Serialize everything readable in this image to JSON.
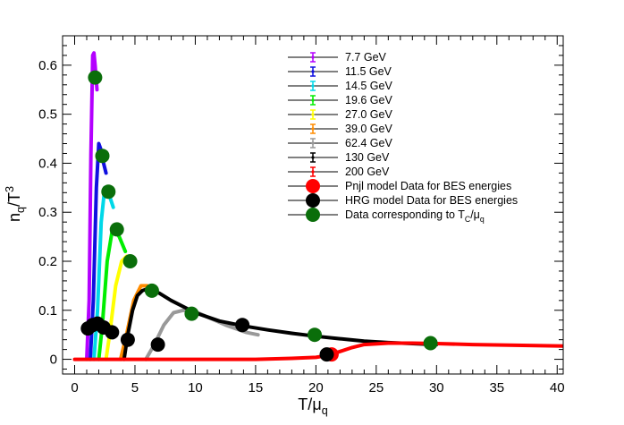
{
  "chart_data": {
    "type": "line",
    "title": "",
    "xlabel": "T/μq",
    "ylabel": "nq/T³",
    "xlim": [
      -1,
      40.5
    ],
    "ylim": [
      -0.03,
      0.66
    ],
    "x_ticks": [
      0,
      5,
      10,
      15,
      20,
      25,
      30,
      35,
      40
    ],
    "y_ticks": [
      0,
      0.1,
      0.2,
      0.3,
      0.4,
      0.5,
      0.6
    ],
    "x_tick_labels": [
      "0",
      "5",
      "10",
      "15",
      "20",
      "25",
      "30",
      "35",
      "40"
    ],
    "y_tick_labels": [
      "0",
      "0.1",
      "0.2",
      "0.3",
      "0.4",
      "0.5",
      "0.6"
    ],
    "series": [
      {
        "name": "7.7 GeV",
        "color": "#b400ff",
        "points": [
          [
            1.0,
            0.0
          ],
          [
            1.2,
            0.12
          ],
          [
            1.35,
            0.42
          ],
          [
            1.5,
            0.62
          ],
          [
            1.6,
            0.625
          ],
          [
            1.7,
            0.6
          ],
          [
            1.85,
            0.55
          ]
        ]
      },
      {
        "name": "11.5 GeV",
        "color": "#1010e0",
        "points": [
          [
            1.3,
            0.0
          ],
          [
            1.55,
            0.12
          ],
          [
            1.8,
            0.35
          ],
          [
            2.0,
            0.44
          ],
          [
            2.15,
            0.43
          ],
          [
            2.3,
            0.41
          ],
          [
            2.6,
            0.38
          ]
        ]
      },
      {
        "name": "14.5 GeV",
        "color": "#00d8e8",
        "points": [
          [
            1.6,
            0.0
          ],
          [
            1.9,
            0.1
          ],
          [
            2.2,
            0.28
          ],
          [
            2.5,
            0.35
          ],
          [
            2.8,
            0.34
          ],
          [
            3.2,
            0.31
          ]
        ]
      },
      {
        "name": "19.6 GeV",
        "color": "#00ee00",
        "points": [
          [
            2.0,
            0.0
          ],
          [
            2.3,
            0.07
          ],
          [
            2.7,
            0.2
          ],
          [
            3.1,
            0.26
          ],
          [
            3.4,
            0.26
          ],
          [
            3.7,
            0.25
          ],
          [
            4.2,
            0.22
          ]
        ]
      },
      {
        "name": "27.0 GeV",
        "color": "#ffff00",
        "points": [
          [
            2.6,
            0.0
          ],
          [
            2.9,
            0.05
          ],
          [
            3.4,
            0.15
          ],
          [
            3.9,
            0.2
          ],
          [
            4.3,
            0.21
          ],
          [
            4.8,
            0.2
          ]
        ]
      },
      {
        "name": "39.0 GeV",
        "color": "#ff8c00",
        "points": [
          [
            3.8,
            0.0
          ],
          [
            4.3,
            0.05
          ],
          [
            4.9,
            0.12
          ],
          [
            5.5,
            0.15
          ],
          [
            6.0,
            0.15
          ],
          [
            6.5,
            0.145
          ]
        ]
      },
      {
        "name": "62.4 GeV",
        "color": "#999999",
        "points": [
          [
            5.9,
            0.0
          ],
          [
            6.6,
            0.03
          ],
          [
            7.4,
            0.07
          ],
          [
            8.2,
            0.095
          ],
          [
            9.0,
            0.1
          ],
          [
            10.2,
            0.095
          ],
          [
            12.5,
            0.07
          ],
          [
            14.2,
            0.055
          ],
          [
            15.2,
            0.05
          ]
        ]
      },
      {
        "name": "130 GeV",
        "color": "#000000",
        "points": [
          [
            4.1,
            0.0
          ],
          [
            4.4,
            0.05
          ],
          [
            4.8,
            0.1
          ],
          [
            5.2,
            0.13
          ],
          [
            5.6,
            0.14
          ],
          [
            6.2,
            0.145
          ],
          [
            7.0,
            0.135
          ],
          [
            8.0,
            0.12
          ],
          [
            10.0,
            0.095
          ],
          [
            12.0,
            0.078
          ],
          [
            14.0,
            0.068
          ],
          [
            16.0,
            0.06
          ],
          [
            18.0,
            0.053
          ],
          [
            20.0,
            0.047
          ],
          [
            22.0,
            0.042
          ],
          [
            24.0,
            0.037
          ],
          [
            26.0,
            0.034
          ],
          [
            28.0,
            0.032
          ],
          [
            30.0,
            0.03
          ]
        ]
      },
      {
        "name": "200 GeV",
        "color": "#ff0000",
        "points": [
          [
            0.0,
            0.0
          ],
          [
            5.0,
            0.0
          ],
          [
            10.0,
            0.0
          ],
          [
            15.0,
            0.0
          ],
          [
            18.0,
            0.002
          ],
          [
            20.0,
            0.004
          ],
          [
            21.0,
            0.008
          ],
          [
            22.0,
            0.016
          ],
          [
            23.0,
            0.024
          ],
          [
            24.0,
            0.03
          ],
          [
            26.0,
            0.033
          ],
          [
            28.0,
            0.033
          ],
          [
            30.0,
            0.032
          ],
          [
            33.0,
            0.03
          ],
          [
            36.0,
            0.029
          ],
          [
            40.5,
            0.027
          ]
        ]
      }
    ],
    "scatter": [
      {
        "name": "Pnjl model Data for BES energies",
        "color": "#ff0000",
        "points": [
          [
            21.3,
            0.01
          ]
        ]
      },
      {
        "name": "HRG model Data for BES energies",
        "color": "#000000",
        "points": [
          [
            1.1,
            0.063
          ],
          [
            1.5,
            0.07
          ],
          [
            1.9,
            0.073
          ],
          [
            2.4,
            0.065
          ],
          [
            3.1,
            0.055
          ],
          [
            4.4,
            0.04
          ],
          [
            6.9,
            0.03
          ],
          [
            13.9,
            0.07
          ],
          [
            20.9,
            0.01
          ]
        ]
      },
      {
        "name": "Data corresponding to Tc/μq",
        "color": "#0a6e0a",
        "points": [
          [
            1.7,
            0.575
          ],
          [
            2.3,
            0.415
          ],
          [
            2.8,
            0.342
          ],
          [
            3.5,
            0.265
          ],
          [
            4.6,
            0.2
          ],
          [
            6.4,
            0.14
          ],
          [
            9.7,
            0.093
          ],
          [
            19.9,
            0.05
          ],
          [
            29.5,
            0.033
          ]
        ]
      }
    ],
    "legend": {
      "position": "top-right",
      "entries": [
        {
          "label": "7.7 GeV",
          "color": "#b400ff",
          "kind": "errorbar"
        },
        {
          "label": "11.5 GeV",
          "color": "#1010e0",
          "kind": "errorbar"
        },
        {
          "label": "14.5 GeV",
          "color": "#00d8e8",
          "kind": "errorbar"
        },
        {
          "label": "19.6 GeV",
          "color": "#00ee00",
          "kind": "errorbar"
        },
        {
          "label": "27.0 GeV",
          "color": "#ffff00",
          "kind": "errorbar"
        },
        {
          "label": "39.0 GeV",
          "color": "#ff8c00",
          "kind": "errorbar"
        },
        {
          "label": "62.4 GeV",
          "color": "#999999",
          "kind": "errorbar"
        },
        {
          "label": "130 GeV",
          "color": "#000000",
          "kind": "errorbar"
        },
        {
          "label": "200 GeV",
          "color": "#ff0000",
          "kind": "errorbar"
        },
        {
          "label": "Pnjl model Data for BES energies",
          "color": "#ff0000",
          "kind": "marker"
        },
        {
          "label": "HRG model Data for BES energies",
          "color": "#000000",
          "kind": "marker"
        },
        {
          "label": "Data corresponding to Tc/μq",
          "color": "#0a6e0a",
          "kind": "marker"
        }
      ]
    }
  }
}
